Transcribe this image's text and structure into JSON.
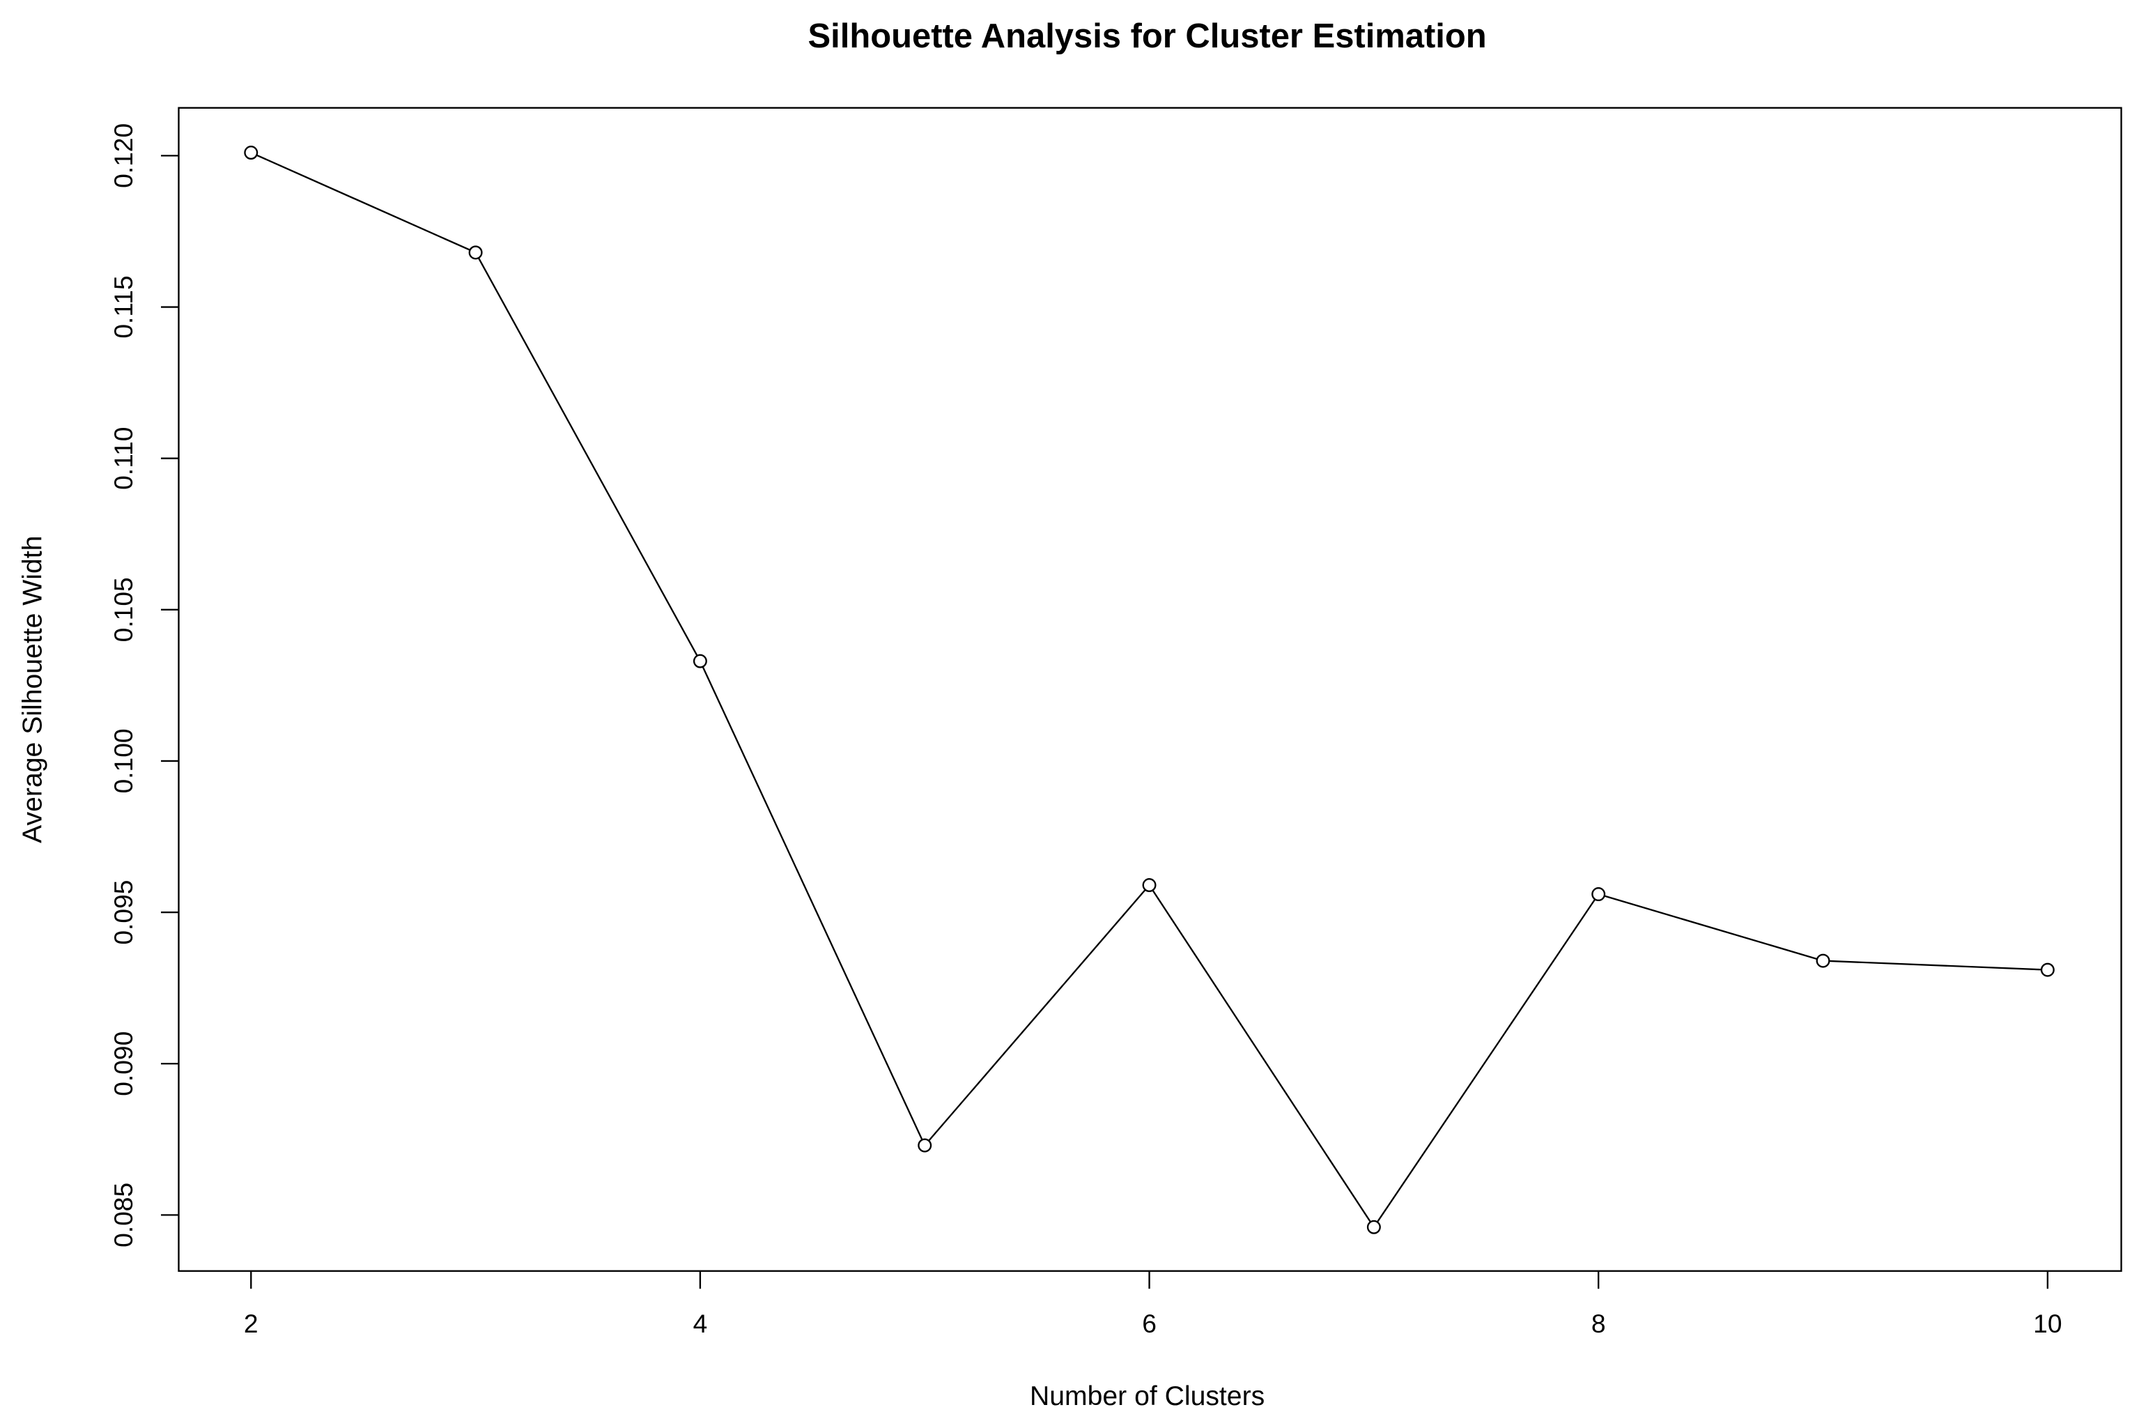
{
  "chart_data": {
    "type": "line",
    "title": "Silhouette Analysis for Cluster Estimation",
    "x_label": "Number of Clusters",
    "y_label": "Average Silhouette Width",
    "x": [
      2,
      3,
      4,
      5,
      6,
      7,
      8,
      9,
      10
    ],
    "series": [
      {
        "name": "Average Silhouette Width",
        "color": "#000000",
        "values": [
          0.1201,
          0.1168,
          0.1033,
          0.0873,
          0.0959,
          0.0846,
          0.0956,
          0.0934,
          0.0931
        ]
      }
    ],
    "xlim": [
      1.678,
      10.328
    ],
    "ylim": [
      0.08315,
      0.12158
    ],
    "xticks": [
      2,
      4,
      6,
      8,
      10
    ],
    "yticks": [
      {
        "value": 0.085,
        "label": "0.085"
      },
      {
        "value": 0.09,
        "label": "0.090"
      },
      {
        "value": 0.095,
        "label": "0.095"
      },
      {
        "value": 0.1,
        "label": "0.100"
      },
      {
        "value": 0.105,
        "label": "0.105"
      },
      {
        "value": 0.11,
        "label": "0.110"
      },
      {
        "value": 0.115,
        "label": "0.115"
      },
      {
        "value": 0.12,
        "label": "0.120"
      }
    ],
    "grid": false
  }
}
